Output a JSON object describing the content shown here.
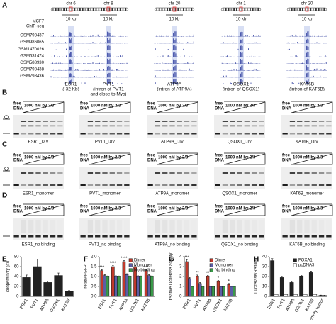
{
  "panel_labels": [
    "A",
    "B",
    "C",
    "D",
    "E",
    "F",
    "G",
    "H"
  ],
  "browser": {
    "sample_header": [
      "MCF7",
      "ChIP-seq"
    ],
    "samples": [
      "GSM798437",
      "GSM986065",
      "GSM1470026",
      "GSM631474",
      "GSM588930",
      "GSM798438",
      "GSM798436"
    ],
    "scale": "10 kb",
    "loci": [
      {
        "chr": "chr 6",
        "gene": "ESR1",
        "note": [
          "(-32 Kb)"
        ]
      },
      {
        "chr": "chr 8",
        "gene": "PVT1",
        "note": [
          "(intron of PVT1",
          "and close to Myc)"
        ]
      },
      {
        "chr": "chr 20",
        "gene": "ATP9A",
        "note": [
          "(intron of ATP9A)"
        ]
      },
      {
        "chr": "chr 1",
        "gene": "QSOX1",
        "note": [
          "(intron of QSOX1)"
        ]
      },
      {
        "chr": "chr 20",
        "gene": "KAT6B",
        "note": [
          "(intron of KAT6B)"
        ]
      }
    ]
  },
  "gels": {
    "free_dna": [
      "free",
      "DNA"
    ],
    "titration": "1000 nM by 2/3",
    "rows": [
      {
        "names": [
          "ESR1_DIV",
          "PVT1_DIV",
          "ATP9A_DIV",
          "QSOX1_DIV",
          "KAT6B_DIV"
        ]
      },
      {
        "names": [
          "ESR1_monomer",
          "PVT1_monomer",
          "ATP9A_monomer",
          "QSOX1_monomer",
          "KAT6B_monomer"
        ]
      },
      {
        "names": [
          "ESR1_no binding",
          "PVT1_no binding",
          "ATP9A_no binding",
          "QSOX1_no binding",
          "KAT6B_no binding"
        ]
      }
    ]
  },
  "chart_data": [
    {
      "type": "bar",
      "y_label": "cooperativity (ω)",
      "categories": [
        "ESR1",
        "PVT1",
        "ATP9A",
        "QSOX1",
        "KAT6B"
      ],
      "values": [
        38,
        60,
        28,
        42,
        10
      ],
      "errors": [
        5,
        15,
        3,
        5,
        2
      ],
      "color": "#222222",
      "ylim": [
        0,
        80
      ],
      "yticks": [
        0,
        20,
        40,
        60,
        80
      ]
    },
    {
      "type": "bar",
      "y_label": "relative GFP",
      "categories": [
        "ESR1",
        "PVT1",
        "ATP9A",
        "QSOX1",
        "KAT6B"
      ],
      "series": [
        {
          "name": "Dimer",
          "color": "#c0392b",
          "values": [
            1.3,
            1.5,
            1.75,
            1.5,
            1.3
          ],
          "errors": [
            0.05,
            0.05,
            0.05,
            0.05,
            0.05
          ]
        },
        {
          "name": "Monomer",
          "color": "#5b5ea6",
          "values": [
            1.05,
            1.0,
            1.1,
            1.0,
            1.05
          ],
          "errors": [
            0.04,
            0.04,
            0.04,
            0.04,
            0.04
          ]
        },
        {
          "name": "No binding",
          "color": "#3a9a4a",
          "values": [
            1.0,
            1.0,
            1.0,
            1.0,
            1.0
          ],
          "errors": [
            0.03,
            0.03,
            0.03,
            0.03,
            0.03
          ]
        }
      ],
      "significance": [
        "***",
        "****",
        "****",
        "***",
        "***"
      ],
      "ylim": [
        0,
        2
      ],
      "yticks": [
        {
          "value": 0,
          "label": "0.0"
        },
        0.5,
        {
          "value": 1,
          "label": "1.0"
        },
        1.5,
        {
          "value": 2,
          "label": "2.0"
        }
      ]
    },
    {
      "type": "bar",
      "y_label": "relative luciferase activity",
      "categories": [
        "ESR1",
        "PVT1",
        "ATP9A",
        "QSOX1",
        "KAT6B"
      ],
      "series": [
        {
          "name": "Dimer",
          "color": "#c0392b",
          "values": [
            3.5,
            2.0,
            2.0,
            1.5,
            1.2
          ],
          "errors": [
            0.2,
            0.15,
            0.1,
            0.1,
            0.1
          ]
        },
        {
          "name": "Monomer",
          "color": "#5b5ea6",
          "values": [
            1.8,
            1.3,
            1.0,
            1.0,
            1.0
          ],
          "errors": [
            0.1,
            0.1,
            0.05,
            0.05,
            0.05
          ]
        },
        {
          "name": "No binding",
          "color": "#3a9a4a",
          "values": [
            1.0,
            1.0,
            1.0,
            1.0,
            1.0
          ],
          "errors": [
            0.05,
            0.05,
            0.05,
            0.05,
            0.05
          ]
        }
      ],
      "significance": [
        "***",
        "**",
        "**",
        "*",
        "*"
      ],
      "ylim": [
        0,
        4
      ],
      "yticks": [
        0,
        1,
        2,
        3,
        4
      ]
    },
    {
      "type": "bar",
      "y_label": "Luciferase/Renilla",
      "categories": [
        "ESR1",
        "PVT1",
        "ATP9A",
        "QSOX1",
        "KAT6B",
        "empty vector"
      ],
      "series": [
        {
          "name": "FOXA1",
          "color": "#222222",
          "values": [
            36,
            19,
            14,
            20,
            24,
            1
          ],
          "errors": [
            2,
            1,
            1,
            1,
            1.5,
            0.3
          ]
        },
        {
          "name": "pcDNA3",
          "color": "#ffffff",
          "values": [
            2,
            2,
            2,
            2,
            2,
            1
          ],
          "errors": [
            0.3,
            0.3,
            0.3,
            0.3,
            0.3,
            0.2
          ]
        }
      ],
      "ylim": [
        0,
        40
      ],
      "yticks": [
        0,
        10,
        20,
        30,
        40
      ]
    }
  ]
}
